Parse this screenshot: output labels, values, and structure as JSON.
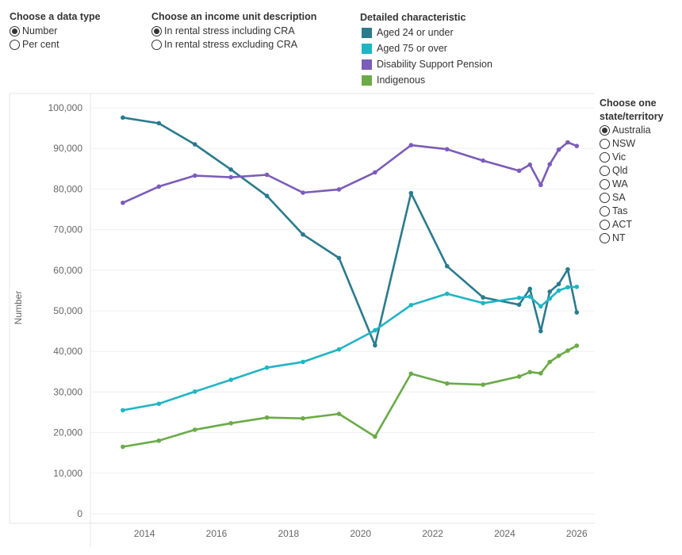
{
  "controls": {
    "data_type": {
      "title": "Choose a data type",
      "options": [
        {
          "label": "Number",
          "selected": true
        },
        {
          "label": "Per cent",
          "selected": false
        }
      ]
    },
    "income_unit": {
      "title": "Choose an income unit description",
      "options": [
        {
          "label": "In rental stress including CRA",
          "selected": true
        },
        {
          "label": "In rental stress excluding CRA",
          "selected": false
        }
      ]
    },
    "state": {
      "title_line1": "Choose one",
      "title_line2": "state/territory",
      "options": [
        {
          "label": "Australia",
          "selected": true
        },
        {
          "label": "NSW",
          "selected": false
        },
        {
          "label": "Vic",
          "selected": false
        },
        {
          "label": "Qld",
          "selected": false
        },
        {
          "label": "WA",
          "selected": false
        },
        {
          "label": "SA",
          "selected": false
        },
        {
          "label": "Tas",
          "selected": false
        },
        {
          "label": "ACT",
          "selected": false
        },
        {
          "label": "NT",
          "selected": false
        }
      ]
    }
  },
  "legend": {
    "title": "Detailed characteristic",
    "items": [
      {
        "label": "Aged 24 or under",
        "color": "#2b7a8e"
      },
      {
        "label": "Aged 75 or over",
        "color": "#1fb5c4"
      },
      {
        "label": "Disability Support Pension",
        "color": "#7b5cb8"
      },
      {
        "label": "Indigenous",
        "color": "#6aab47"
      }
    ]
  },
  "chart_data": {
    "type": "line",
    "xlabel": "",
    "ylabel": "Number",
    "xlim": [
      2012.5,
      2026.5
    ],
    "ylim": [
      0,
      100000
    ],
    "x_ticks": [
      2014,
      2016,
      2018,
      2020,
      2022,
      2024,
      2026
    ],
    "y_ticks": [
      0,
      10000,
      20000,
      30000,
      40000,
      50000,
      60000,
      70000,
      80000,
      90000,
      100000
    ],
    "y_tick_labels": [
      "0",
      "10,000",
      "20,000",
      "30,000",
      "40,000",
      "50,000",
      "60,000",
      "70,000",
      "80,000",
      "90,000",
      "100,000"
    ],
    "grid": true,
    "x": [
      2013.4,
      2014.4,
      2015.4,
      2016.4,
      2017.4,
      2018.4,
      2019.4,
      2020.4,
      2021.4,
      2022.4,
      2023.4,
      2024.4,
      2024.7,
      2025.0,
      2025.25,
      2025.5,
      2025.75,
      2026.0
    ],
    "series": [
      {
        "name": "Aged 24 or under",
        "color": "#2b7a8e",
        "values": [
          97600,
          96200,
          91000,
          84800,
          78300,
          68800,
          63000,
          41500,
          79000,
          61000,
          53300,
          51500,
          55400,
          45000,
          54700,
          56600,
          60200,
          49600
        ]
      },
      {
        "name": "Aged 75 or over",
        "color": "#1fb5c4",
        "values": [
          25500,
          27100,
          30100,
          33000,
          36000,
          37400,
          40500,
          45200,
          51400,
          54200,
          51900,
          53200,
          53500,
          51100,
          53000,
          55000,
          55800,
          55900
        ]
      },
      {
        "name": "Disability Support Pension",
        "color": "#7b5cb8",
        "values": [
          76600,
          80600,
          83300,
          82900,
          83500,
          79100,
          79900,
          84100,
          90800,
          89800,
          87000,
          84500,
          86000,
          81000,
          86100,
          89700,
          91500,
          90600
        ]
      },
      {
        "name": "Indigenous",
        "color": "#6aab47",
        "values": [
          16500,
          18000,
          20700,
          22300,
          23700,
          23500,
          24600,
          19000,
          34500,
          32100,
          31800,
          33800,
          34900,
          34600,
          37400,
          38900,
          40200,
          41400
        ]
      }
    ]
  }
}
